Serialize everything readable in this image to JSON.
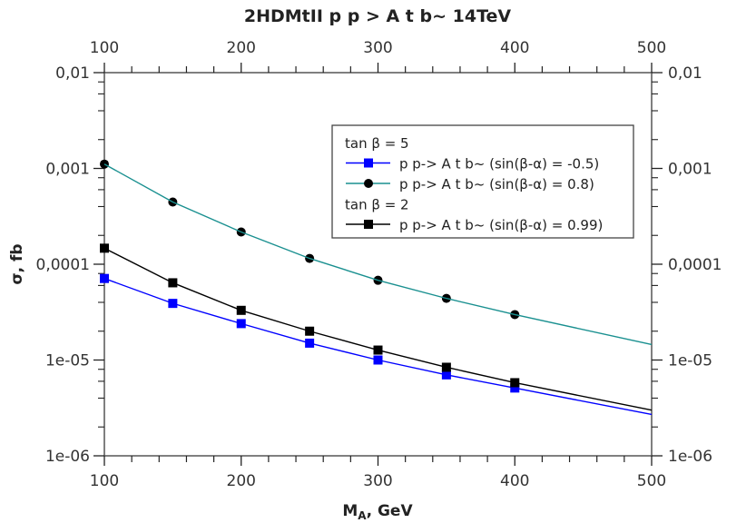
{
  "chart_data": {
    "type": "line",
    "title": "2HDMtII p p > A t b~ 14TeV",
    "xlabel": "M_A, GeV",
    "xlabel_main": "M",
    "xlabel_sub": "A",
    "xlabel_rest": ", GeV",
    "ylabel": "σ, fb",
    "xlim": [
      100,
      500
    ],
    "ylim": [
      1e-06,
      0.01
    ],
    "yscale": "log",
    "grid": false,
    "legend_placement": "upper-right",
    "x_ticks": [
      "100",
      "200",
      "300",
      "400",
      "500"
    ],
    "y_ticks": [
      "1e-06",
      "1e-05",
      "0,0001",
      "0,001",
      "0,01"
    ],
    "legend": [
      {
        "kind": "header",
        "text": "tan β = 5"
      },
      {
        "kind": "series",
        "series": 0,
        "text": "p p-> A t b~ (sin(β-α) = -0.5)"
      },
      {
        "kind": "series",
        "series": 1,
        "text": "p p-> A t b~ (sin(β-α) = 0.8)"
      },
      {
        "kind": "header",
        "text": "tan β = 2"
      },
      {
        "kind": "series",
        "series": 2,
        "text": "p p-> A t b~ (sin(β-α) = 0.99)"
      }
    ],
    "series": [
      {
        "name": "p p-> A t b~ (sin(β-α) = -0.5)",
        "color": "#0000ff",
        "marker": "square",
        "x": [
          100,
          150,
          200,
          250,
          300,
          350,
          400,
          500
        ],
        "y": [
          7.1e-05,
          3.9e-05,
          2.4e-05,
          1.5e-05,
          1e-05,
          7e-06,
          5.1e-06,
          2.7e-06
        ],
        "marked": [
          true,
          true,
          true,
          true,
          true,
          true,
          true,
          false
        ]
      },
      {
        "name": "p p-> A t b~ (sin(β-α) = 0.8)",
        "color": "#1a9090",
        "marker": "circle",
        "x": [
          100,
          150,
          200,
          250,
          300,
          350,
          400,
          500
        ],
        "y": [
          0.00111,
          0.000446,
          0.000217,
          0.000115,
          6.8e-05,
          4.4e-05,
          2.98e-05,
          1.45e-05
        ],
        "marked": [
          true,
          true,
          true,
          true,
          true,
          true,
          true,
          false
        ]
      },
      {
        "name": "p p-> A t b~ (sin(β-α) = 0.99)",
        "color": "#000000",
        "marker": "square",
        "x": [
          100,
          150,
          200,
          250,
          300,
          350,
          400,
          500
        ],
        "y": [
          0.000147,
          6.4e-05,
          3.3e-05,
          2e-05,
          1.27e-05,
          8.4e-06,
          5.8e-06,
          3e-06
        ],
        "marked": [
          true,
          true,
          true,
          true,
          true,
          true,
          true,
          false
        ]
      }
    ]
  }
}
